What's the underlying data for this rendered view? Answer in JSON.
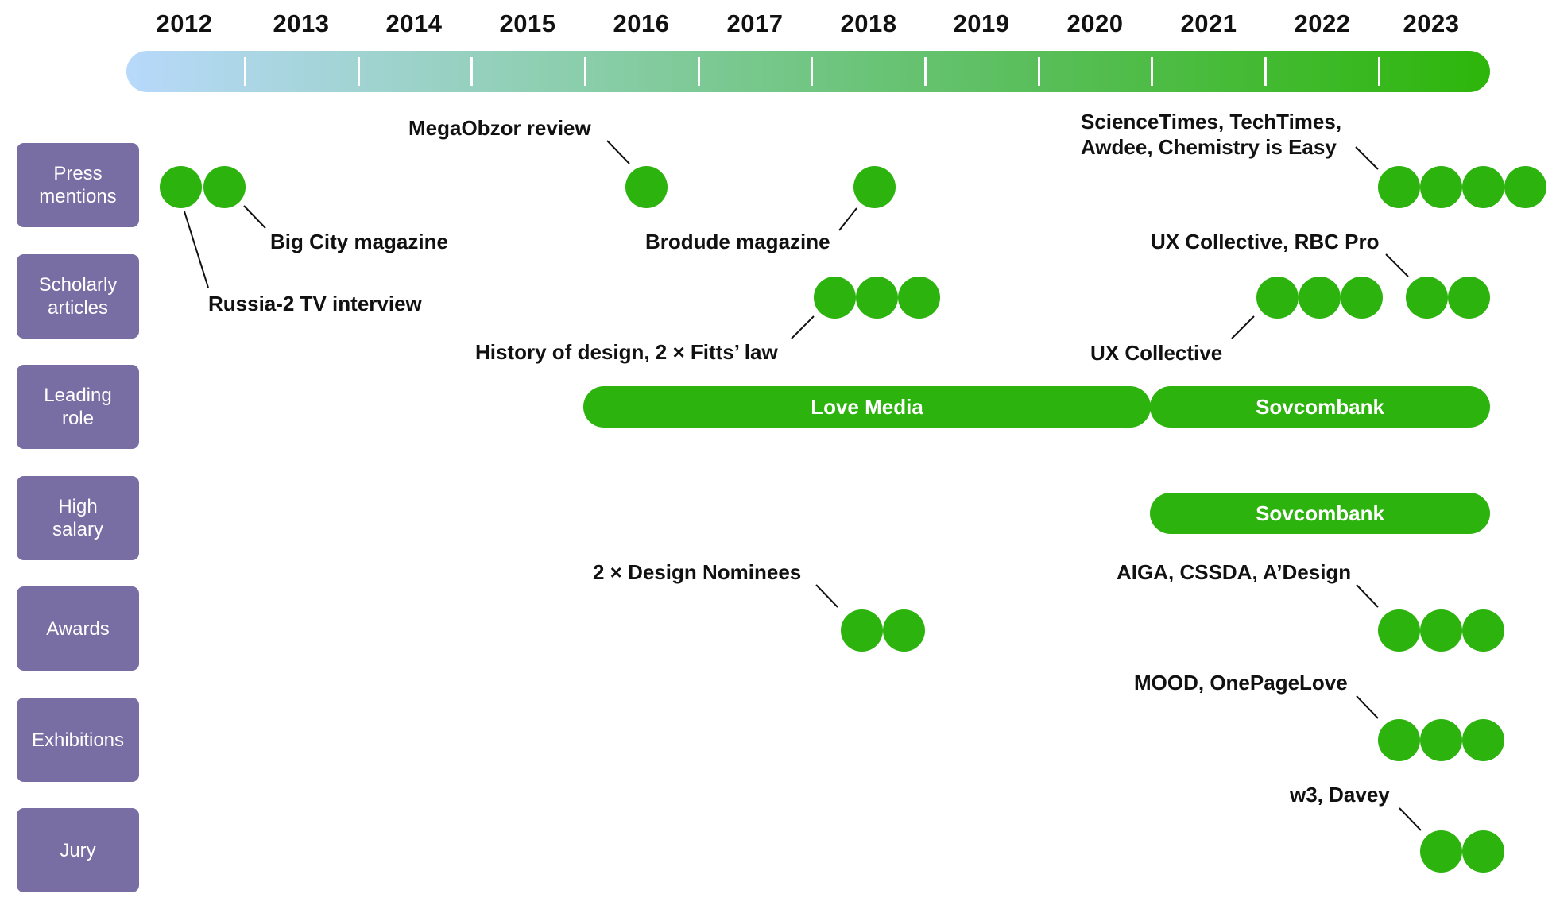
{
  "years": [
    "2012",
    "2013",
    "2014",
    "2015",
    "2016",
    "2017",
    "2018",
    "2019",
    "2020",
    "2021",
    "2022",
    "2023"
  ],
  "categories": {
    "press": "Press\nmentions",
    "scholarly": "Scholarly\narticles",
    "leading": "Leading\nrole",
    "salary": "High\nsalary",
    "awards": "Awards",
    "exhibitions": "Exhibitions",
    "jury": "Jury"
  },
  "labels": {
    "megaobzor": "MegaObzor review",
    "sciencetimes_line1": "ScienceTimes, TechTimes,",
    "sciencetimes_line2": "Awdee, Chemistry is Easy",
    "bigcity": "Big City magazine",
    "brodude": "Brodude magazine",
    "ux_rbc": "UX Collective, RBC Pro",
    "russia2": "Russia-2 TV interview",
    "history": "History of design, 2 × Fitts’ law",
    "ux_collective": "UX Collective",
    "design_nominees": "2 × Design Nominees",
    "aiga": "AIGA, CSSDA, A’Design",
    "mood": "MOOD, OnePageLove",
    "w3": "w3, Davey"
  },
  "roles": {
    "love_media": "Love Media",
    "sovcombank_leading": "Sovcombank",
    "sovcombank_salary": "Sovcombank"
  },
  "colors": {
    "accent_green": "#2cb30e",
    "category_purple": "#786ea3",
    "timeline_start": "#b8d9fb",
    "timeline_end": "#2db60a"
  }
}
